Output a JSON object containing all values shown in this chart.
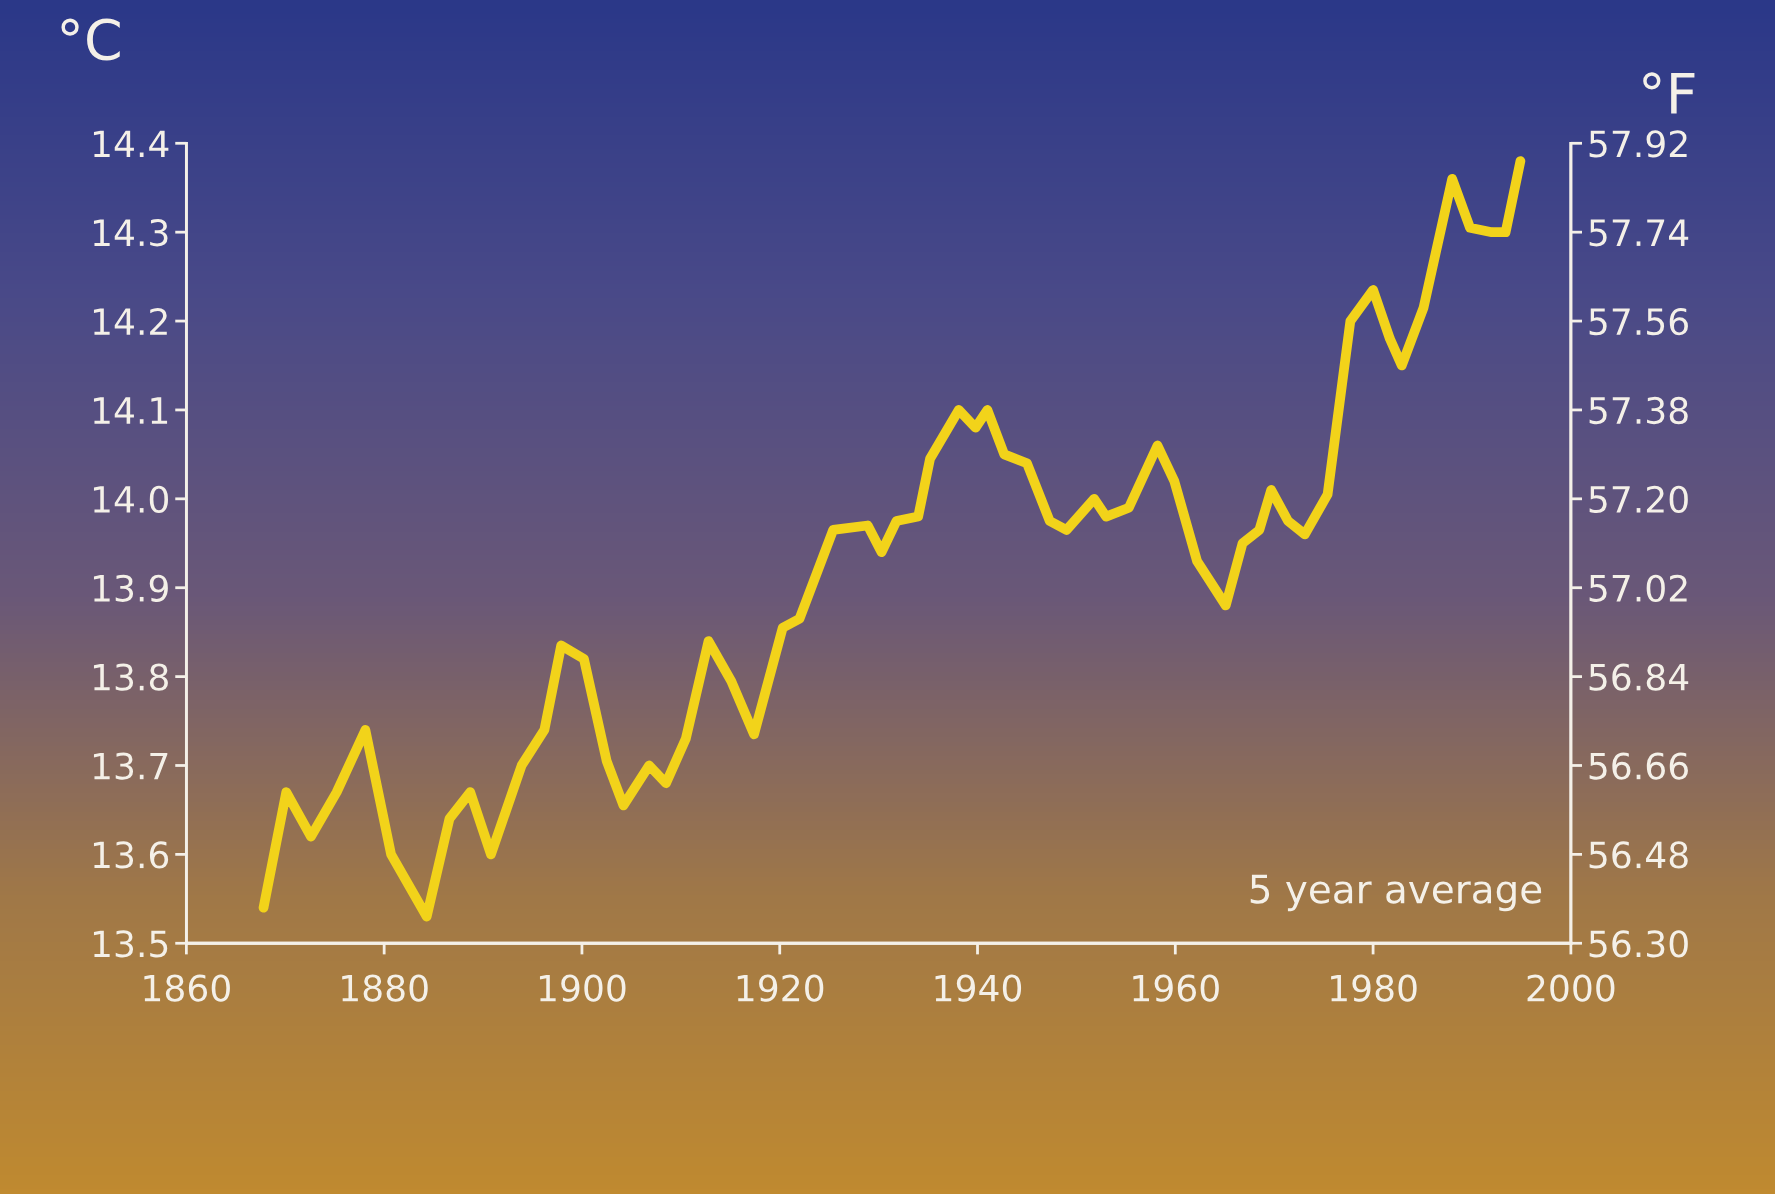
{
  "chart_data": {
    "type": "line",
    "ylabel": "°C",
    "y2label": "°F",
    "annotations": [
      "5 year average"
    ],
    "x": [
      1867.8,
      1870.1,
      1872.6,
      1875.2,
      1878.1,
      1880.7,
      1884.3,
      1886.6,
      1888.7,
      1890.8,
      1893.9,
      1896.2,
      1897.9,
      1900.2,
      1902.5,
      1904.2,
      1906.8,
      1908.5,
      1910.5,
      1912.8,
      1915.1,
      1917.4,
      1920.3,
      1922.0,
      1925.4,
      1928.9,
      1930.3,
      1931.8,
      1934.0,
      1935.2,
      1938.1,
      1939.8,
      1941.0,
      1942.7,
      1945.0,
      1947.3,
      1949.0,
      1951.8,
      1953.0,
      1955.3,
      1958.2,
      1959.9,
      1962.2,
      1965.1,
      1966.8,
      1968.5,
      1969.7,
      1971.4,
      1973.1,
      1975.4,
      1977.7,
      1980.0,
      1981.7,
      1982.9,
      1985.1,
      1988.0,
      1989.8,
      1992.0,
      1993.4,
      1994.9
    ],
    "series": [
      {
        "color": "#f2d31a",
        "values": [
          13.54,
          13.67,
          13.62,
          13.67,
          13.74,
          13.6,
          13.53,
          13.64,
          13.67,
          13.6,
          13.7,
          13.74,
          13.835,
          13.82,
          13.705,
          13.655,
          13.7,
          13.68,
          13.73,
          13.84,
          13.795,
          13.735,
          13.855,
          13.865,
          13.965,
          13.97,
          13.94,
          13.975,
          13.98,
          14.045,
          14.1,
          14.08,
          14.1,
          14.05,
          14.04,
          13.975,
          13.965,
          14.0,
          13.98,
          13.99,
          14.06,
          14.02,
          13.93,
          13.88,
          13.95,
          13.965,
          14.01,
          13.975,
          13.96,
          14.005,
          14.2,
          14.235,
          14.18,
          14.15,
          14.215,
          14.36,
          14.305,
          14.3,
          14.3,
          14.38
        ]
      }
    ],
    "xlim": [
      1860,
      2000
    ],
    "xticks": [
      1860,
      1880,
      1900,
      1920,
      1940,
      1960,
      1980,
      2000
    ],
    "ylim": [
      13.5,
      14.4
    ],
    "yticks": [
      13.5,
      13.6,
      13.7,
      13.8,
      13.9,
      {
        "value": 14.0,
        "label": "14.0"
      },
      14.1,
      14.2,
      14.3,
      14.4
    ],
    "y2lim": [
      56.3,
      57.92
    ],
    "y2ticks": [
      {
        "value": 56.3,
        "label": "56.30"
      },
      56.48,
      56.66,
      56.84,
      57.02,
      {
        "value": 57.2,
        "label": "57.20"
      },
      57.38,
      57.56,
      57.74,
      57.92
    ],
    "grid": false,
    "marker": "none",
    "line_style": "solid"
  }
}
